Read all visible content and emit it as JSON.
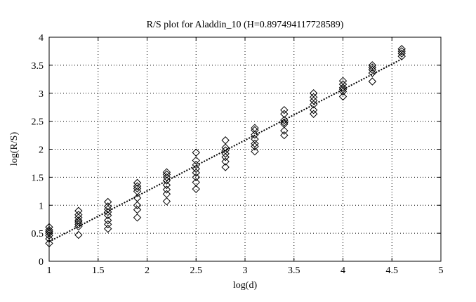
{
  "chart_data": {
    "type": "scatter",
    "title": "R/S plot for Aladdin_10 (H=0.897494117728589)",
    "xlabel": "log(d)",
    "ylabel": "log(R/S)",
    "xlim": [
      1,
      5
    ],
    "ylim": [
      0,
      4
    ],
    "xticks": [
      "1",
      "1.5",
      "2",
      "2.5",
      "3",
      "3.5",
      "4",
      "4.5",
      "5"
    ],
    "yticks": [
      "0",
      "0.5",
      "1",
      "1.5",
      "2",
      "2.5",
      "3",
      "3.5",
      "4"
    ],
    "grid": true,
    "marker": "diamond",
    "points": [
      {
        "x": 1.0,
        "y": 0.32
      },
      {
        "x": 1.0,
        "y": 0.4
      },
      {
        "x": 1.0,
        "y": 0.46
      },
      {
        "x": 1.0,
        "y": 0.5
      },
      {
        "x": 1.0,
        "y": 0.53
      },
      {
        "x": 1.0,
        "y": 0.56
      },
      {
        "x": 1.0,
        "y": 0.61
      },
      {
        "x": 1.3,
        "y": 0.47
      },
      {
        "x": 1.3,
        "y": 0.62
      },
      {
        "x": 1.3,
        "y": 0.66
      },
      {
        "x": 1.3,
        "y": 0.7
      },
      {
        "x": 1.3,
        "y": 0.73
      },
      {
        "x": 1.3,
        "y": 0.78
      },
      {
        "x": 1.3,
        "y": 0.83
      },
      {
        "x": 1.3,
        "y": 0.9
      },
      {
        "x": 1.6,
        "y": 0.58
      },
      {
        "x": 1.6,
        "y": 0.66
      },
      {
        "x": 1.6,
        "y": 0.73
      },
      {
        "x": 1.6,
        "y": 0.82
      },
      {
        "x": 1.6,
        "y": 0.88
      },
      {
        "x": 1.6,
        "y": 0.93
      },
      {
        "x": 1.6,
        "y": 0.98
      },
      {
        "x": 1.6,
        "y": 1.06
      },
      {
        "x": 1.9,
        "y": 0.78
      },
      {
        "x": 1.9,
        "y": 0.92
      },
      {
        "x": 1.9,
        "y": 1.0
      },
      {
        "x": 1.9,
        "y": 1.13
      },
      {
        "x": 1.9,
        "y": 1.25
      },
      {
        "x": 1.9,
        "y": 1.3
      },
      {
        "x": 1.9,
        "y": 1.34
      },
      {
        "x": 1.9,
        "y": 1.4
      },
      {
        "x": 2.2,
        "y": 1.07
      },
      {
        "x": 2.2,
        "y": 1.2
      },
      {
        "x": 2.2,
        "y": 1.28
      },
      {
        "x": 2.2,
        "y": 1.36
      },
      {
        "x": 2.2,
        "y": 1.44
      },
      {
        "x": 2.2,
        "y": 1.5
      },
      {
        "x": 2.2,
        "y": 1.55
      },
      {
        "x": 2.2,
        "y": 1.59
      },
      {
        "x": 2.5,
        "y": 1.29
      },
      {
        "x": 2.5,
        "y": 1.41
      },
      {
        "x": 2.5,
        "y": 1.5
      },
      {
        "x": 2.5,
        "y": 1.58
      },
      {
        "x": 2.5,
        "y": 1.65
      },
      {
        "x": 2.5,
        "y": 1.72
      },
      {
        "x": 2.5,
        "y": 1.8
      },
      {
        "x": 2.5,
        "y": 1.94
      },
      {
        "x": 2.8,
        "y": 1.68
      },
      {
        "x": 2.8,
        "y": 1.78
      },
      {
        "x": 2.8,
        "y": 1.86
      },
      {
        "x": 2.8,
        "y": 1.92
      },
      {
        "x": 2.8,
        "y": 1.98
      },
      {
        "x": 2.8,
        "y": 2.03
      },
      {
        "x": 2.8,
        "y": 2.16
      },
      {
        "x": 3.1,
        "y": 1.96
      },
      {
        "x": 3.1,
        "y": 2.05
      },
      {
        "x": 3.1,
        "y": 2.1
      },
      {
        "x": 3.1,
        "y": 2.18
      },
      {
        "x": 3.1,
        "y": 2.26
      },
      {
        "x": 3.1,
        "y": 2.34
      },
      {
        "x": 3.1,
        "y": 2.38
      },
      {
        "x": 3.4,
        "y": 2.25
      },
      {
        "x": 3.4,
        "y": 2.33
      },
      {
        "x": 3.4,
        "y": 2.45
      },
      {
        "x": 3.4,
        "y": 2.48
      },
      {
        "x": 3.4,
        "y": 2.52
      },
      {
        "x": 3.4,
        "y": 2.63
      },
      {
        "x": 3.4,
        "y": 2.7
      },
      {
        "x": 3.7,
        "y": 2.63
      },
      {
        "x": 3.7,
        "y": 2.7
      },
      {
        "x": 3.7,
        "y": 2.8
      },
      {
        "x": 3.7,
        "y": 2.87
      },
      {
        "x": 3.7,
        "y": 2.93
      },
      {
        "x": 3.7,
        "y": 3.0
      },
      {
        "x": 4.0,
        "y": 2.94
      },
      {
        "x": 4.0,
        "y": 3.03
      },
      {
        "x": 4.0,
        "y": 3.07
      },
      {
        "x": 4.0,
        "y": 3.1
      },
      {
        "x": 4.0,
        "y": 3.16
      },
      {
        "x": 4.0,
        "y": 3.22
      },
      {
        "x": 4.3,
        "y": 3.21
      },
      {
        "x": 4.3,
        "y": 3.36
      },
      {
        "x": 4.3,
        "y": 3.42
      },
      {
        "x": 4.3,
        "y": 3.46
      },
      {
        "x": 4.3,
        "y": 3.5
      },
      {
        "x": 4.6,
        "y": 3.66
      },
      {
        "x": 4.6,
        "y": 3.71
      },
      {
        "x": 4.6,
        "y": 3.75
      },
      {
        "x": 4.6,
        "y": 3.79
      }
    ],
    "fit_line": {
      "x": [
        1.0,
        4.6
      ],
      "y": [
        0.35,
        3.61
      ],
      "style": "dotted"
    }
  }
}
